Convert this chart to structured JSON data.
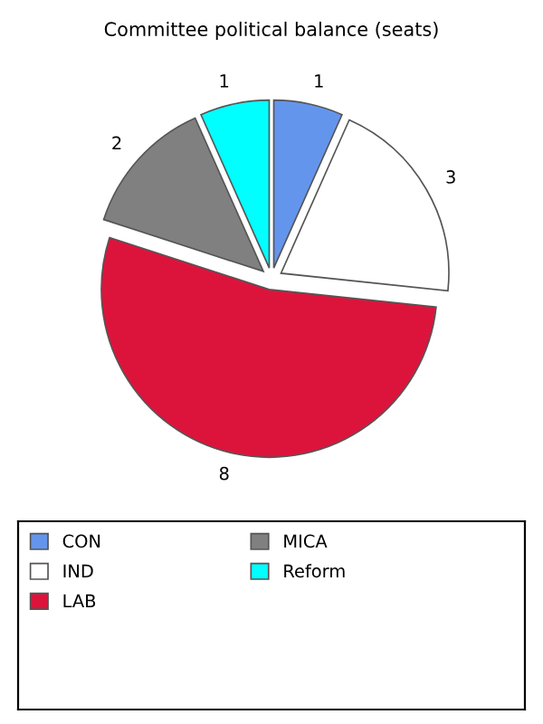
{
  "chart_data": {
    "type": "pie",
    "title": "Committee political balance (seats)",
    "categories": [
      "CON",
      "IND",
      "LAB",
      "MICA",
      "Reform"
    ],
    "values": [
      1,
      3,
      8,
      2,
      1
    ],
    "colors": [
      "#6495ed",
      "#ffffff",
      "#dc143c",
      "#808080",
      "#00ffff"
    ],
    "data_labels": true,
    "legend": "bottom"
  }
}
